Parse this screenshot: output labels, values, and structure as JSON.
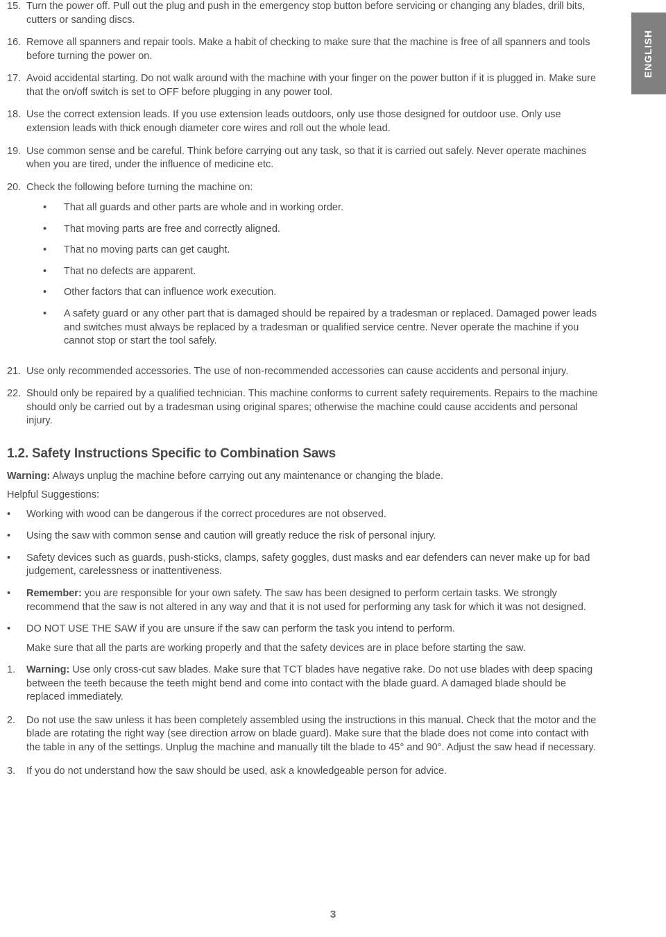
{
  "language_tab": "ENGLISH",
  "page_number": "3",
  "colors": {
    "tab_background": "#808080",
    "tab_text": "#ffffff",
    "body_text": "#4a4a4a",
    "page_background": "#ffffff"
  },
  "ordered_list_1": [
    {
      "num": "15.",
      "text": "Turn the power off. Pull out the plug and push in the emergency stop button before servicing or changing any blades, drill bits, cutters or sanding discs."
    },
    {
      "num": "16.",
      "text": "Remove all spanners and repair tools. Make a habit of checking to make sure that the machine is free of all spanners and tools before turning the power on."
    },
    {
      "num": "17.",
      "text": "Avoid accidental starting. Do not walk around with the machine with your finger on the power button if it is plugged in. Make sure that the on/off switch is set to OFF before plugging in any power tool."
    },
    {
      "num": "18.",
      "text": "Use the correct extension leads. If you use extension leads outdoors, only use those designed for outdoor use. Only use extension leads with thick enough diameter core wires and roll out the whole lead."
    },
    {
      "num": "19.",
      "text": "Use common sense and be careful. Think before carrying out any task, so that it is carried out safely. Never operate machines when you are tired, under the influence of medicine etc."
    },
    {
      "num": "20.",
      "text": "Check the following before turning the machine on:",
      "sub_bullets": [
        "That all guards and other parts are whole and in working order.",
        "That moving parts are free and correctly aligned.",
        "That no moving parts can get caught.",
        "That no defects are apparent.",
        " Other factors that can influence work execution.",
        "A safety guard or any other part that is damaged should be repaired by a tradesman or replaced. Damaged power leads and switches must always be replaced by a tradesman or qualified service centre. Never operate the machine if you cannot stop or start the tool safely."
      ]
    },
    {
      "num": "21.",
      "text": "Use only recommended accessories. The use of non-recommended accessories can cause accidents and personal injury."
    },
    {
      "num": "22.",
      "text": "Should only be repaired by a qualified technician. This machine conforms to current safety requirements. Repairs to the machine should only be carried out by a tradesman using original spares; otherwise the machine could cause accidents and personal injury."
    }
  ],
  "section_heading": "1.2. Safety Instructions Specific to Combination Saws",
  "warning_label": "Warning:",
  "warning_text": " Always unplug the machine before carrying out any maintenance or changing the blade.",
  "helpful_suggestions": "Helpful Suggestions:",
  "bullets_2": [
    {
      "text": "Working with wood can be dangerous if the correct procedures are not observed."
    },
    {
      "text": "Using the saw with common sense and caution will greatly reduce the risk of personal injury."
    },
    {
      "text": "Safety devices such as guards, push-sticks, clamps, safety goggles, dust masks and ear defenders can never make up for bad judgement, carelessness or inattentiveness."
    },
    {
      "bold_prefix": "Remember:",
      "text": " you are responsible for your own safety. The saw has been designed to perform certain tasks. We strongly recommend that the saw is not altered in any way and that it is not used for performing any task for which it was not designed."
    },
    {
      "text": "DO NOT USE THE SAW if you are unsure if the saw can perform the task you intend to perform.",
      "extra": "Make sure that all the parts are working properly and that the safety devices are in place before starting the saw."
    }
  ],
  "ordered_list_2": [
    {
      "num": "1.",
      "bold_prefix": "Warning:",
      "text": " Use only cross-cut saw blades. Make sure that TCT blades have negative rake. Do not use blades with deep spacing between the teeth because the teeth might bend and come into contact with the blade guard. A damaged blade should be replaced immediately."
    },
    {
      "num": "2.",
      "text": "Do not use the saw unless it has been completely assembled using the instructions in this manual. Check that the motor and the blade are rotating the right way (see direction arrow on blade guard). Make sure that the blade does not come into contact with the table in any of the settings. Unplug the machine and manually tilt the blade to 45° and 90°. Adjust the saw head if necessary."
    },
    {
      "num": "3.",
      "text": "If you do not understand how the saw should be used, ask a knowledgeable person for advice."
    }
  ]
}
